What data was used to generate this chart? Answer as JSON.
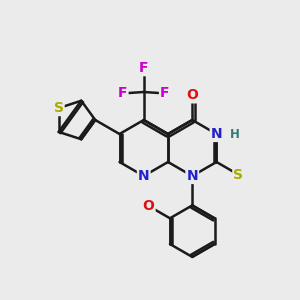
{
  "bg_color": "#ebebeb",
  "bond_color": "#1a1a1a",
  "bond_width": 1.8,
  "atom_colors": {
    "N": "#2222cc",
    "O": "#dd1111",
    "S_thio": "#aaaa00",
    "S_thienyl": "#aaaa00",
    "F": "#cc00cc",
    "H": "#337777",
    "C": "#1a1a1a"
  },
  "figsize": [
    3.0,
    3.0
  ],
  "dpi": 100
}
